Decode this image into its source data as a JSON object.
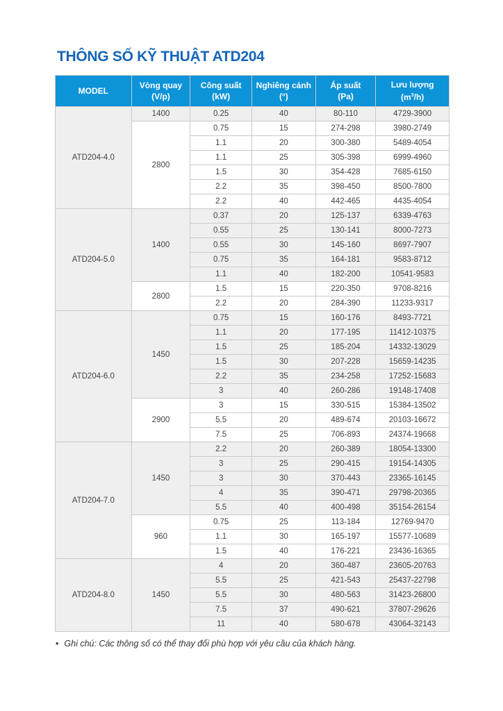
{
  "title": "THÔNG SỐ KỸ THUẬT ATD204",
  "colors": {
    "header_bg": "#0d93d8",
    "title": "#1466b8",
    "row_shaded": "#efefef"
  },
  "headers": {
    "model": "MODEL",
    "speed": [
      "Vòng quay",
      "(V/p)"
    ],
    "power": [
      "Công suất",
      "(kW)"
    ],
    "angle": [
      "Nghiêng cánh",
      "(°)"
    ],
    "pressure": [
      "Áp suất",
      "(Pa)"
    ],
    "flow": [
      "Lưu lượng",
      "(m",
      "3",
      "/h)"
    ]
  },
  "models": [
    {
      "model": "ATD204-4.0",
      "groups": [
        {
          "speed": "1400",
          "rows": [
            [
              "0.25",
              "40",
              "80-110",
              "4729-3900"
            ]
          ]
        },
        {
          "speed": "2800",
          "rows": [
            [
              "0.75",
              "15",
              "274-298",
              "3980-2749"
            ],
            [
              "1.1",
              "20",
              "300-380",
              "5489-4054"
            ],
            [
              "1.1",
              "25",
              "305-398",
              "6999-4960"
            ],
            [
              "1.5",
              "30",
              "354-428",
              "7685-6150"
            ],
            [
              "2.2",
              "35",
              "398-450",
              "8500-7800"
            ],
            [
              "2.2",
              "40",
              "442-465",
              "4435-4054"
            ]
          ]
        }
      ]
    },
    {
      "model": "ATD204-5.0",
      "groups": [
        {
          "speed": "1400",
          "rows": [
            [
              "0.37",
              "20",
              "125-137",
              "6339-4763"
            ],
            [
              "0.55",
              "25",
              "130-141",
              "8000-7273"
            ],
            [
              "0.55",
              "30",
              "145-160",
              "8697-7907"
            ],
            [
              "0.75",
              "35",
              "164-181",
              "9583-8712"
            ],
            [
              "1.1",
              "40",
              "182-200",
              "10541-9583"
            ]
          ]
        },
        {
          "speed": "2800",
          "rows": [
            [
              "1.5",
              "15",
              "220-350",
              "9708-8216"
            ],
            [
              "2.2",
              "20",
              "284-390",
              "11233-9317"
            ]
          ]
        }
      ]
    },
    {
      "model": "ATD204-6.0",
      "groups": [
        {
          "speed": "1450",
          "rows": [
            [
              "0.75",
              "15",
              "160-176",
              "8493-7721"
            ],
            [
              "1.1",
              "20",
              "177-195",
              "11412-10375"
            ],
            [
              "1.5",
              "25",
              "185-204",
              "14332-13029"
            ],
            [
              "1.5",
              "30",
              "207-228",
              "15659-14235"
            ],
            [
              "2.2",
              "35",
              "234-258",
              "17252-15683"
            ],
            [
              "3",
              "40",
              "260-286",
              "19148-17408"
            ]
          ]
        },
        {
          "speed": "2900",
          "rows": [
            [
              "3",
              "15",
              "330-515",
              "15384-13502"
            ],
            [
              "5.5",
              "20",
              "489-674",
              "20103-16672"
            ],
            [
              "7.5",
              "25",
              "706-893",
              "24374-19668"
            ]
          ]
        }
      ]
    },
    {
      "model": "ATD204-7.0",
      "groups": [
        {
          "speed": "1450",
          "rows": [
            [
              "2.2",
              "20",
              "260-389",
              "18054-13300"
            ],
            [
              "3",
              "25",
              "290-415",
              "19154-14305"
            ],
            [
              "3",
              "30",
              "370-443",
              "23365-16145"
            ],
            [
              "4",
              "35",
              "390-471",
              "29798-20365"
            ],
            [
              "5.5",
              "40",
              "400-498",
              "35154-26154"
            ]
          ]
        },
        {
          "speed": "960",
          "rows": [
            [
              "0.75",
              "25",
              "113-184",
              "12769-9470"
            ],
            [
              "1.1",
              "30",
              "165-197",
              "15577-10689"
            ],
            [
              "1.5",
              "40",
              "176-221",
              "23436-16365"
            ]
          ]
        }
      ]
    },
    {
      "model": "ATD204-8.0",
      "groups": [
        {
          "speed": "1450",
          "rows": [
            [
              "4",
              "20",
              "360-487",
              "23605-20763"
            ],
            [
              "5.5",
              "25",
              "421-543",
              "25437-22798"
            ],
            [
              "5.5",
              "30",
              "480-563",
              "31423-26800"
            ],
            [
              "7.5",
              "37",
              "490-621",
              "37807-29626"
            ],
            [
              "11",
              "40",
              "580-678",
              "43064-32143"
            ]
          ]
        }
      ]
    }
  ],
  "note": "Ghi chú: Các thông số có thể thay đổi phù hợp với yêu cầu của khách hàng."
}
